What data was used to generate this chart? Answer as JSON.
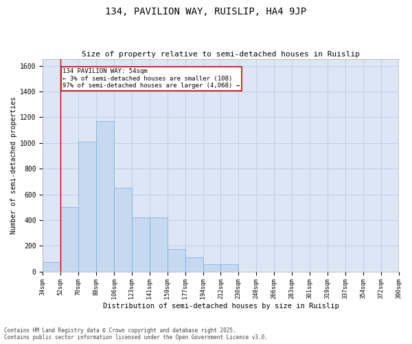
{
  "title": "134, PAVILION WAY, RUISLIP, HA4 9JP",
  "subtitle": "Size of property relative to semi-detached houses in Ruislip",
  "xlabel": "Distribution of semi-detached houses by size in Ruislip",
  "ylabel": "Number of semi-detached properties",
  "bins": [
    "34sqm",
    "52sqm",
    "70sqm",
    "88sqm",
    "106sqm",
    "123sqm",
    "141sqm",
    "159sqm",
    "177sqm",
    "194sqm",
    "212sqm",
    "230sqm",
    "248sqm",
    "266sqm",
    "283sqm",
    "301sqm",
    "319sqm",
    "337sqm",
    "354sqm",
    "372sqm",
    "390sqm"
  ],
  "bar_values": [
    75,
    500,
    1010,
    1170,
    650,
    420,
    420,
    175,
    110,
    55,
    55,
    0,
    0,
    0,
    0,
    0,
    0,
    0,
    0,
    0
  ],
  "bar_color": "#c5d9f1",
  "bar_edge_color": "#7aaccf",
  "grid_color": "#b8cce4",
  "plot_bg_color": "#dce6f5",
  "fig_bg_color": "#ffffff",
  "red_line_x": 1,
  "annotation_text": "134 PAVILION WAY: 54sqm\n← 3% of semi-detached houses are smaller (108)\n97% of semi-detached houses are larger (4,068) →",
  "annotation_box_color": "#ffffff",
  "annotation_border_color": "#cc0000",
  "ylim": [
    0,
    1650
  ],
  "yticks": [
    0,
    200,
    400,
    600,
    800,
    1000,
    1200,
    1400,
    1600
  ],
  "footer_line1": "Contains HM Land Registry data © Crown copyright and database right 2025.",
  "footer_line2": "Contains public sector information licensed under the Open Government Licence v3.0."
}
